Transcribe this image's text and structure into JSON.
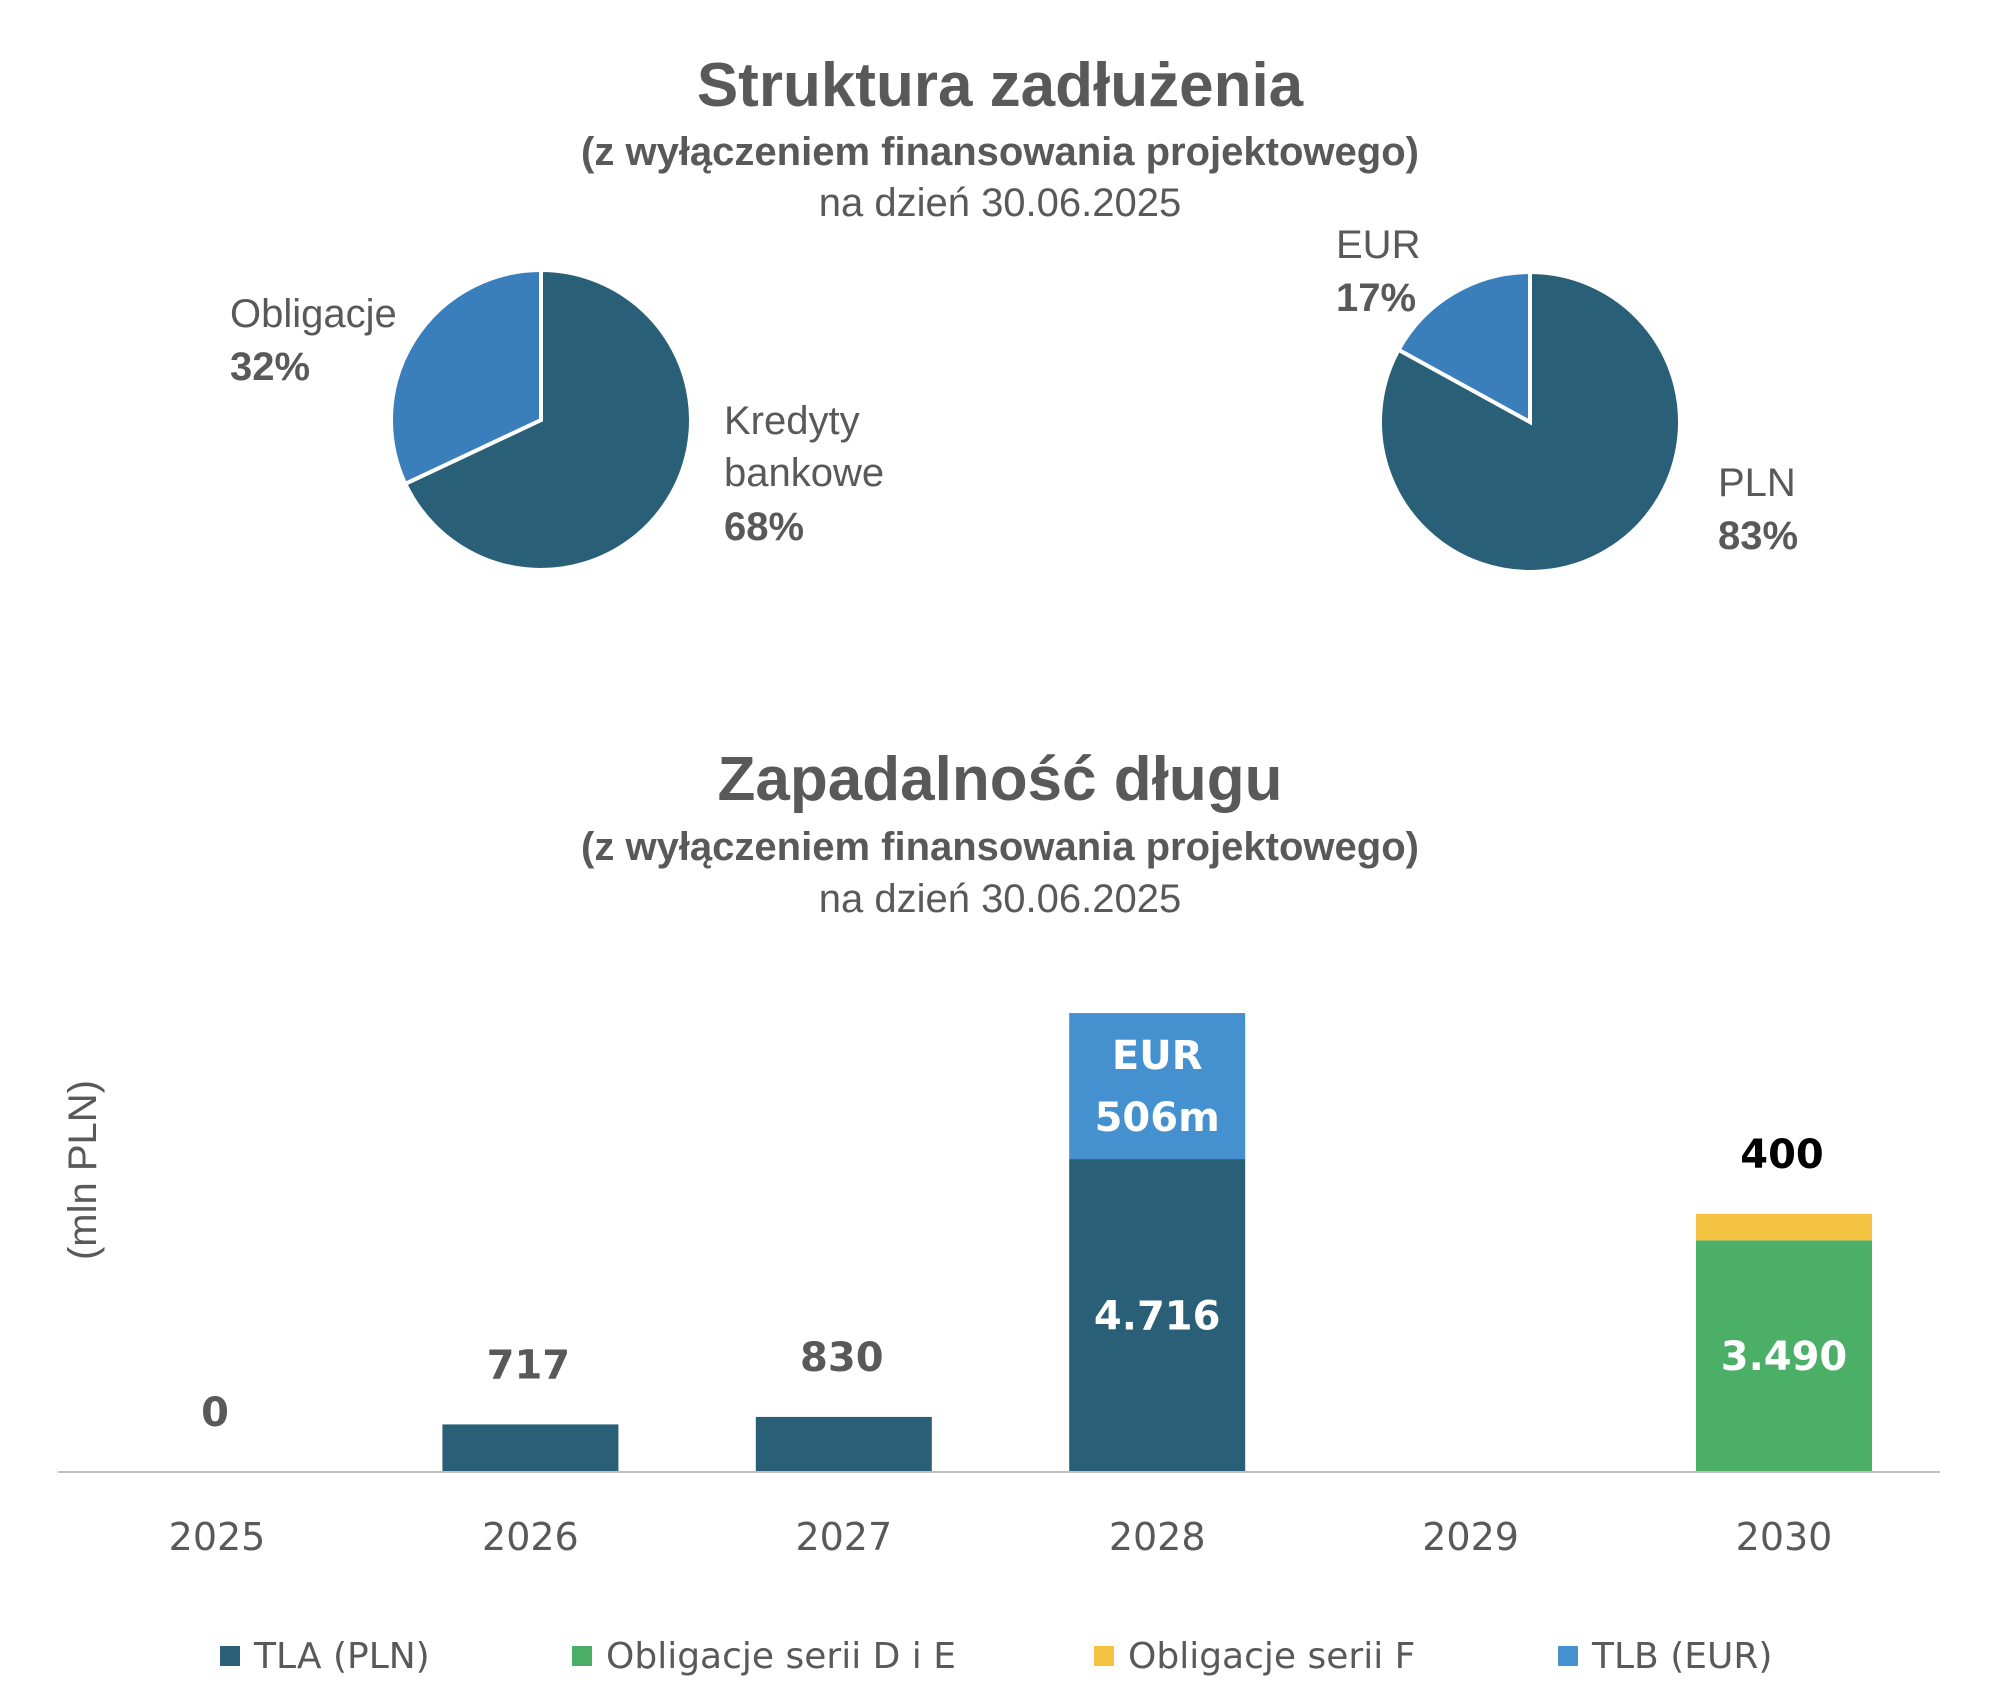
{
  "chart_data": [
    {
      "type": "pie",
      "title": "Struktura zadłużenia",
      "subtitle": "(z wyłączeniem finansowania projektowego)",
      "date": "na dzień 30.06.2025",
      "slices": [
        {
          "name": "Obligacje",
          "value": 32,
          "label": "32%",
          "color": "#3a7fbc"
        },
        {
          "name": "Kredyty bankowe",
          "name_lines": [
            "Kredyty",
            "bankowe"
          ],
          "value": 68,
          "label": "68%",
          "color": "#2a6077"
        }
      ]
    },
    {
      "type": "pie",
      "slices": [
        {
          "name": "EUR",
          "value": 17,
          "label": "17%",
          "color": "#3a7fbc"
        },
        {
          "name": "PLN",
          "value": 83,
          "label": "83%",
          "color": "#2a6077"
        }
      ]
    },
    {
      "type": "bar",
      "stacked": true,
      "title": "Zapadalność długu",
      "subtitle": "(z wyłączeniem finansowania projektowego)",
      "date": "na dzień 30.06.2025",
      "ylabel": "(mln PLN)",
      "categories": [
        "2025",
        "2026",
        "2027",
        "2028",
        "2029",
        "2030"
      ],
      "series": [
        {
          "name": "TLA (PLN)",
          "color": "#2a6077",
          "values": [
            0,
            717,
            830,
            4716,
            0,
            0
          ]
        },
        {
          "name": "Obligacje serii D i E",
          "color": "#4caf68",
          "values": [
            0,
            0,
            0,
            0,
            0,
            3490
          ]
        },
        {
          "name": "Obligacje serii F",
          "color": "#f5c342",
          "values": [
            0,
            0,
            0,
            0,
            0,
            400
          ]
        },
        {
          "name": "TLB (EUR)",
          "color": "#4590cf",
          "values": [
            0,
            0,
            0,
            2200,
            0,
            0
          ]
        }
      ],
      "bar_labels": [
        {
          "category": "2025",
          "text": "0",
          "position": "above"
        },
        {
          "category": "2026",
          "text": "717",
          "position": "above"
        },
        {
          "category": "2027",
          "text": "830",
          "position": "above"
        },
        {
          "category": "2028",
          "series": "TLA (PLN)",
          "text": "4.716",
          "position": "inside"
        },
        {
          "category": "2028",
          "series": "TLB (EUR)",
          "text_lines": [
            "EUR",
            "506m"
          ],
          "position": "inside"
        },
        {
          "category": "2030",
          "series": "Obligacje serii D i E",
          "text": "3.490",
          "position": "inside"
        },
        {
          "category": "2030",
          "text": "400",
          "position": "above",
          "color": "#000000"
        }
      ],
      "grid": false,
      "legend_position": "bottom"
    }
  ]
}
